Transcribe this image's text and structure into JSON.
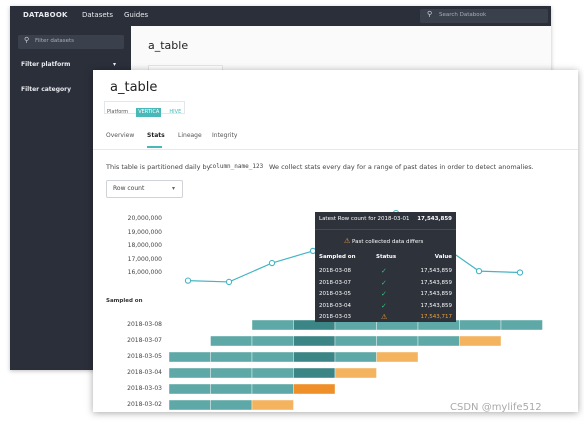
{
  "bg": {
    "nav": {
      "brand": "DATABOOK",
      "datasets": "Datasets",
      "guides": "Guides",
      "search_placeholder": "Search Databook"
    },
    "sidebar": {
      "filter_placeholder": "Filter datasets",
      "filter_platform": "Filter platform",
      "filter_category": "Filter category",
      "platform_caret": "▾"
    },
    "title": "a_table",
    "platform": {
      "label": "Platform",
      "vertica": "VERTICA",
      "hive": "HIVE"
    }
  },
  "front": {
    "title": "a_table",
    "platform": {
      "label": "Platform",
      "vertica": "VERTICA",
      "hive": "HIVE"
    },
    "tabs": [
      "Overview",
      "Stats",
      "Lineage",
      "Integrity"
    ],
    "active_tab": "Stats",
    "desc": {
      "pre": "This table is partitioned daily by",
      "column": "column_name_123",
      "post": "We collect stats every day for a range of past dates in order to detect anomalies."
    },
    "metric_select": {
      "value": "Row count",
      "caret": "▾"
    },
    "sampled_on_label": "Sampled on"
  },
  "chart_data": [
    {
      "type": "line",
      "title": "",
      "ylabel": "",
      "yticks": [
        "20,000,000",
        "19,000,000",
        "18,000,000",
        "17,000,000",
        "16,000,000"
      ],
      "ylim": [
        15000000,
        21000000
      ],
      "series": [
        {
          "values": [
            15400000,
            15300000,
            16700000,
            17600000,
            18600000,
            20400000,
            16100000,
            16000000
          ]
        }
      ],
      "color": "#45b5c4",
      "grid": false
    },
    {
      "type": "bar",
      "subtype": "stacked-horizontal-timeline",
      "ylabel": "Sampled on",
      "rows": [
        {
          "date": "2018-03-08",
          "segments": [
            {
              "from": 2,
              "to": 9,
              "kind": "ok"
            }
          ]
        },
        {
          "date": "2018-03-07",
          "segments": [
            {
              "from": 1,
              "to": 7,
              "kind": "ok"
            },
            {
              "from": 7,
              "to": 8,
              "kind": "warn"
            }
          ]
        },
        {
          "date": "2018-03-05",
          "segments": [
            {
              "from": 0,
              "to": 5,
              "kind": "ok"
            },
            {
              "from": 5,
              "to": 6,
              "kind": "warn"
            }
          ]
        },
        {
          "date": "2018-03-04",
          "segments": [
            {
              "from": 0,
              "to": 4,
              "kind": "ok"
            },
            {
              "from": 4,
              "to": 5,
              "kind": "warn"
            }
          ]
        },
        {
          "date": "2018-03-03",
          "segments": [
            {
              "from": 0,
              "to": 3,
              "kind": "ok"
            },
            {
              "from": 3,
              "to": 4,
              "kind": "warn-dark"
            }
          ]
        },
        {
          "date": "2018-03-02",
          "segments": [
            {
              "from": 0,
              "to": 2,
              "kind": "ok"
            },
            {
              "from": 2,
              "to": 3,
              "kind": "warn"
            }
          ]
        }
      ],
      "highlight_column": 3,
      "colors": {
        "ok": "#5ea8a7",
        "highlight": "#3b8586",
        "warn": "#f3b35f",
        "warn-dark": "#ef8f2a"
      }
    }
  ],
  "tooltip": {
    "title": "Latest Row count for 2018-03-01",
    "title_value": "17,543,859",
    "warning": "Past collected data differs",
    "headers": {
      "sampled_on": "Sampled on",
      "status": "Status",
      "value": "Value"
    },
    "rows": [
      {
        "date": "2018-03-08",
        "status": "ok",
        "value": "17,543,859"
      },
      {
        "date": "2018-03-07",
        "status": "ok",
        "value": "17,543,859"
      },
      {
        "date": "2018-03-05",
        "status": "ok",
        "value": "17,543,859"
      },
      {
        "date": "2018-03-04",
        "status": "ok",
        "value": "17,543,859"
      },
      {
        "date": "2018-03-03",
        "status": "warn",
        "value": "17,543,717"
      }
    ]
  },
  "watermark": "CSDN @mylife512"
}
